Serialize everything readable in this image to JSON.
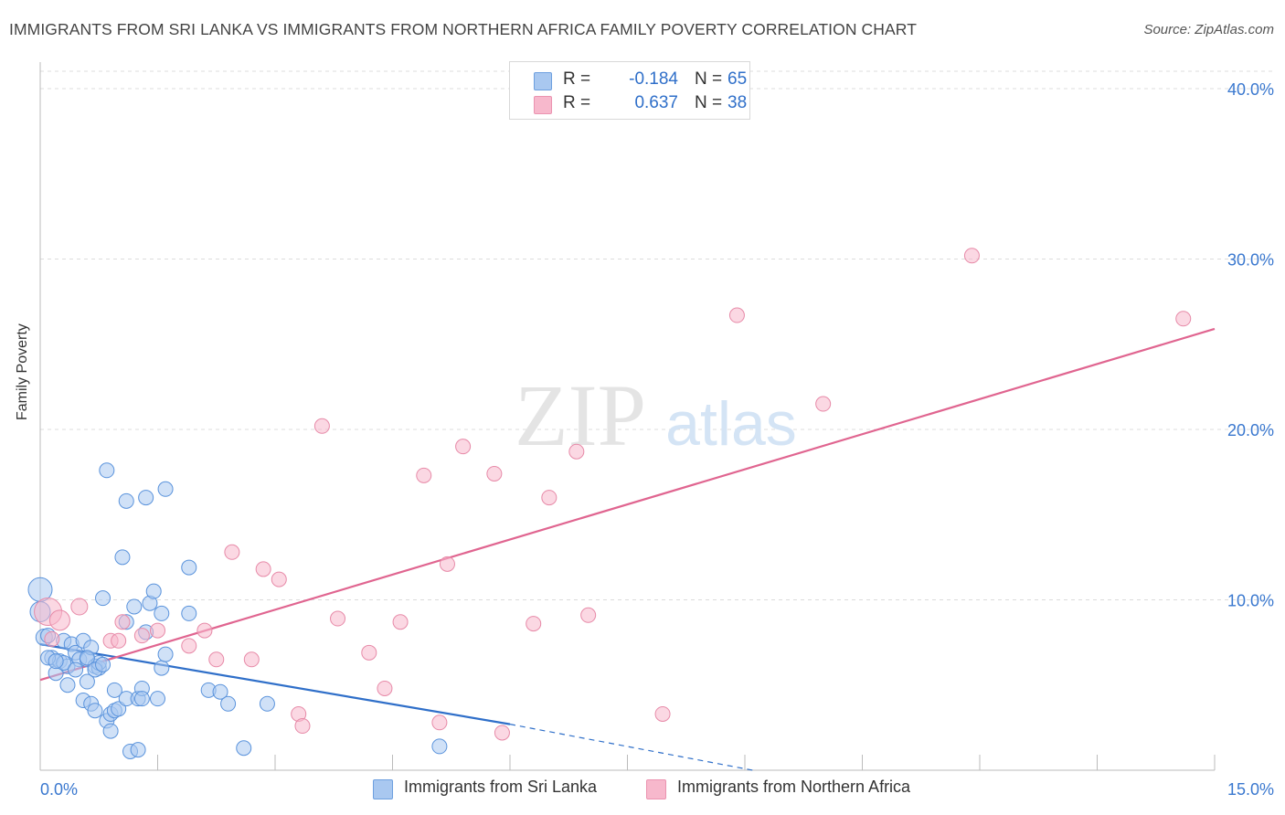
{
  "header": {
    "title": "IMMIGRANTS FROM SRI LANKA VS IMMIGRANTS FROM NORTHERN AFRICA FAMILY POVERTY CORRELATION CHART",
    "source": "Source: ZipAtlas.com"
  },
  "watermark": {
    "zip": "ZIP",
    "atlas": "atlas"
  },
  "stats": {
    "rows": [
      {
        "r_label": "R =",
        "r_value": "-0.184",
        "n_label": "N =",
        "n_value": "65",
        "color": "#a9c8f0"
      },
      {
        "r_label": "R =",
        "r_value": "0.637",
        "n_label": "N =",
        "n_value": "38",
        "color": "#f7b8cc"
      }
    ]
  },
  "legend": {
    "items": [
      {
        "label": "Immigrants from Sri Lanka",
        "color": "#a9c8f0"
      },
      {
        "label": "Immigrants from Northern Africa",
        "color": "#f7b8cc"
      }
    ]
  },
  "chart_data": {
    "type": "scatter",
    "title": "IMMIGRANTS FROM SRI LANKA VS IMMIGRANTS FROM NORTHERN AFRICA FAMILY POVERTY CORRELATION CHART",
    "xlabel": "",
    "ylabel": "Family Poverty",
    "xlim": [
      0,
      15
    ],
    "ylim": [
      0,
      40
    ],
    "x_tick_labels": [
      {
        "value": 0,
        "label": "0.0%"
      },
      {
        "value": 15,
        "label": "15.0%"
      }
    ],
    "x_minor_ticks": [
      1.5,
      3.0,
      4.5,
      6.0,
      7.5,
      9.0,
      10.5,
      12.0,
      13.5
    ],
    "y_ticks": [
      {
        "value": 10,
        "label": "10.0%"
      },
      {
        "value": 20,
        "label": "20.0%"
      },
      {
        "value": 30,
        "label": "30.0%"
      },
      {
        "value": 40,
        "label": "40.0%"
      }
    ],
    "grid": true,
    "series": [
      {
        "name": "Immigrants from Sri Lanka",
        "color": "#a9c8f0",
        "stroke": "#5a93dc",
        "line_color": "#2f6fc9",
        "trend": {
          "x0": 0.0,
          "y0": 7.4,
          "x1": 6.0,
          "y1": 2.7,
          "dash_to_x": 9.1,
          "dash_to_y": 0.0
        },
        "points": [
          [
            0.0,
            10.6,
            13
          ],
          [
            0.0,
            9.3,
            11
          ],
          [
            0.05,
            7.8,
            9
          ],
          [
            0.15,
            6.6,
            8
          ],
          [
            0.2,
            5.7,
            8
          ],
          [
            0.25,
            6.4,
            8
          ],
          [
            0.3,
            7.6,
            8
          ],
          [
            0.35,
            6.1,
            8
          ],
          [
            0.35,
            5.0,
            8
          ],
          [
            0.4,
            7.4,
            8
          ],
          [
            0.45,
            6.9,
            8
          ],
          [
            0.5,
            6.5,
            8
          ],
          [
            0.55,
            7.6,
            8
          ],
          [
            0.55,
            4.1,
            8
          ],
          [
            0.6,
            5.2,
            8
          ],
          [
            0.6,
            6.5,
            8
          ],
          [
            0.65,
            7.2,
            8
          ],
          [
            0.65,
            3.9,
            8
          ],
          [
            0.7,
            3.5,
            8
          ],
          [
            0.7,
            6.1,
            8
          ],
          [
            0.75,
            6.0,
            8
          ],
          [
            0.75,
            6.3,
            8
          ],
          [
            0.8,
            10.1,
            8
          ],
          [
            0.85,
            17.6,
            8
          ],
          [
            0.85,
            2.9,
            8
          ],
          [
            0.9,
            3.3,
            8
          ],
          [
            0.9,
            2.3,
            8
          ],
          [
            0.95,
            4.7,
            8
          ],
          [
            0.95,
            3.5,
            8
          ],
          [
            1.0,
            3.6,
            8
          ],
          [
            1.05,
            12.5,
            8
          ],
          [
            1.1,
            15.8,
            8
          ],
          [
            1.1,
            8.7,
            8
          ],
          [
            1.1,
            4.2,
            8
          ],
          [
            1.15,
            1.1,
            8
          ],
          [
            1.2,
            9.6,
            8
          ],
          [
            1.25,
            4.2,
            8
          ],
          [
            1.25,
            1.2,
            8
          ],
          [
            1.3,
            4.8,
            8
          ],
          [
            1.3,
            4.2,
            8
          ],
          [
            1.35,
            8.1,
            8
          ],
          [
            1.35,
            16.0,
            8
          ],
          [
            1.4,
            9.8,
            8
          ],
          [
            1.45,
            10.5,
            8
          ],
          [
            1.5,
            4.2,
            8
          ],
          [
            1.55,
            9.2,
            8
          ],
          [
            1.55,
            6.0,
            8
          ],
          [
            1.6,
            16.5,
            8
          ],
          [
            1.6,
            6.8,
            8
          ],
          [
            1.9,
            9.2,
            8
          ],
          [
            1.9,
            11.9,
            8
          ],
          [
            2.15,
            4.7,
            8
          ],
          [
            2.3,
            4.6,
            8
          ],
          [
            2.4,
            3.9,
            8
          ],
          [
            2.6,
            1.3,
            8
          ],
          [
            2.9,
            3.9,
            8
          ],
          [
            5.1,
            1.4,
            8
          ],
          [
            0.1,
            6.6,
            8
          ],
          [
            0.3,
            6.3,
            8
          ],
          [
            0.45,
            5.9,
            8
          ],
          [
            0.6,
            6.6,
            8
          ],
          [
            0.7,
            5.9,
            8
          ],
          [
            0.8,
            6.2,
            8
          ],
          [
            0.1,
            7.9,
            8
          ],
          [
            0.2,
            6.4,
            8
          ]
        ]
      },
      {
        "name": "Immigrants from Northern Africa",
        "color": "#f7b8cc",
        "stroke": "#e78aa8",
        "line_color": "#e06590",
        "trend": {
          "x0": 0.0,
          "y0": 5.3,
          "x1": 15.0,
          "y1": 25.9
        },
        "points": [
          [
            0.1,
            9.3,
            15
          ],
          [
            0.25,
            8.8,
            11
          ],
          [
            0.5,
            9.6,
            9
          ],
          [
            0.9,
            7.6,
            8
          ],
          [
            1.0,
            7.6,
            8
          ],
          [
            1.05,
            8.7,
            8
          ],
          [
            1.3,
            7.9,
            8
          ],
          [
            1.5,
            8.2,
            8
          ],
          [
            1.9,
            7.3,
            8
          ],
          [
            2.1,
            8.2,
            8
          ],
          [
            2.25,
            6.5,
            8
          ],
          [
            2.45,
            12.8,
            8
          ],
          [
            2.7,
            6.5,
            8
          ],
          [
            2.85,
            11.8,
            8
          ],
          [
            3.05,
            11.2,
            8
          ],
          [
            3.3,
            3.3,
            8
          ],
          [
            3.35,
            2.6,
            8
          ],
          [
            3.6,
            20.2,
            8
          ],
          [
            3.8,
            8.9,
            8
          ],
          [
            4.2,
            6.9,
            8
          ],
          [
            4.4,
            4.8,
            8
          ],
          [
            4.6,
            8.7,
            8
          ],
          [
            4.9,
            17.3,
            8
          ],
          [
            5.1,
            2.8,
            8
          ],
          [
            5.2,
            12.1,
            8
          ],
          [
            5.4,
            19.0,
            8
          ],
          [
            5.8,
            17.4,
            8
          ],
          [
            5.9,
            2.2,
            8
          ],
          [
            6.3,
            8.6,
            8
          ],
          [
            6.5,
            16.0,
            8
          ],
          [
            6.85,
            18.7,
            8
          ],
          [
            7.0,
            9.1,
            8
          ],
          [
            7.95,
            3.3,
            8
          ],
          [
            8.9,
            26.7,
            8
          ],
          [
            10.0,
            21.5,
            8
          ],
          [
            11.9,
            30.2,
            8
          ],
          [
            14.6,
            26.5,
            8
          ],
          [
            0.15,
            7.7,
            8
          ]
        ]
      }
    ]
  }
}
